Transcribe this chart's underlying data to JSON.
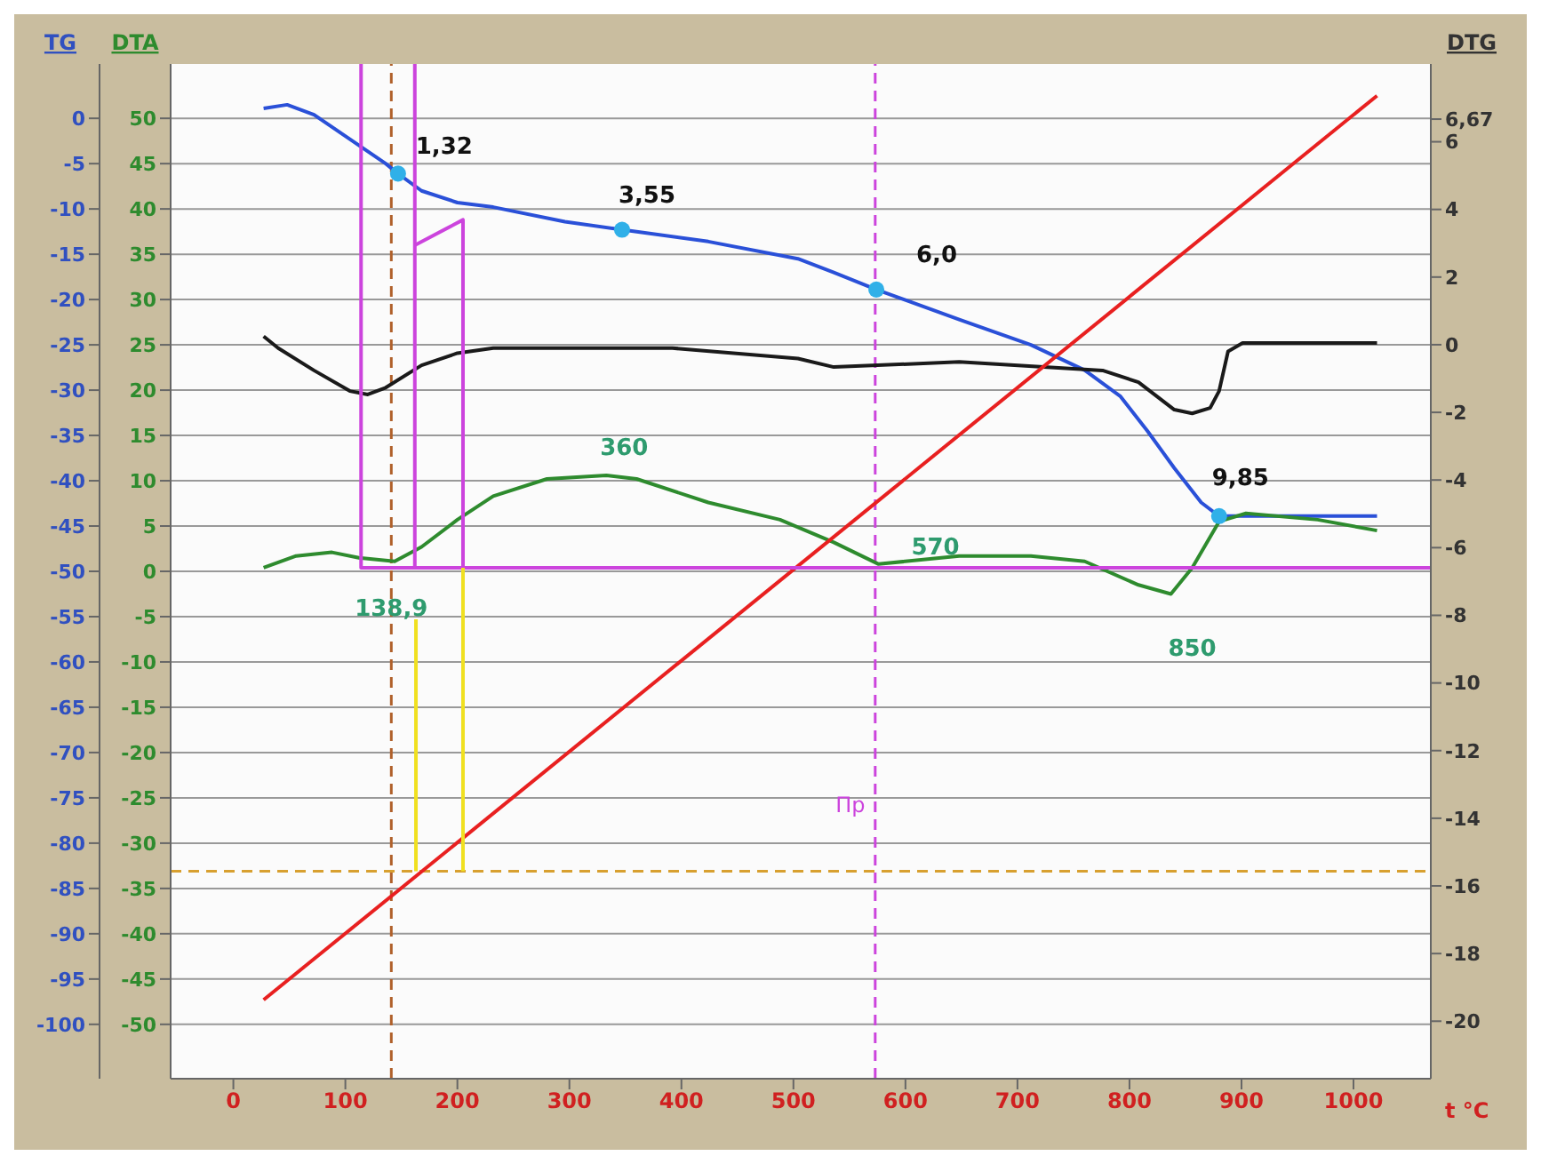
{
  "chart_data": {
    "type": "line",
    "xlabel": "t °C",
    "ylabel": "DTA",
    "y2label": "TG",
    "y3label": "DTG",
    "xlim": [
      -56,
      1069
    ],
    "xticks": [
      0,
      100,
      200,
      300,
      400,
      500,
      600,
      700,
      800,
      900,
      1000
    ],
    "ylim": [
      -56,
      56
    ],
    "yticks": [
      -50,
      -45,
      -40,
      -35,
      -30,
      -25,
      -20,
      -15,
      -10,
      -5,
      0,
      5,
      10,
      15,
      20,
      25,
      30,
      35,
      40,
      45,
      50
    ],
    "y2lim": [
      -106,
      6
    ],
    "y2ticks": [
      -100,
      -95,
      -90,
      -85,
      -80,
      -75,
      -70,
      -65,
      -60,
      -55,
      -50,
      -45,
      -40,
      -35,
      -30,
      -25,
      -20,
      -15,
      -10,
      -5,
      0
    ],
    "y3lim": [
      -21.7,
      8.3
    ],
    "y3ticks": [
      -20,
      -18,
      -16,
      -14,
      -12,
      -10,
      -8,
      -6,
      -4,
      -2,
      0,
      2,
      4,
      6,
      {
        "value": 6.67,
        "label": "6,67"
      }
    ],
    "grid": "y",
    "legend": false,
    "series": [
      {
        "axis": "y2",
        "color": "#2a50d8",
        "x": [
          27,
          48,
          72,
          104,
          136,
          147,
          168,
          200,
          232,
          296,
          347,
          424,
          504,
          536,
          574,
          648,
          712,
          760,
          792,
          816,
          840,
          864,
          880,
          904,
          1021
        ],
        "values": [
          1.1,
          1.5,
          0.4,
          -2.3,
          -5.0,
          -6.1,
          -8.0,
          -9.3,
          -9.8,
          -11.4,
          -12.3,
          -13.6,
          -15.5,
          -17.0,
          -18.9,
          -22.2,
          -25.0,
          -27.8,
          -30.7,
          -34.5,
          -38.6,
          -42.4,
          -43.9,
          -43.9,
          -43.9
        ]
      },
      {
        "type": "scatter",
        "axis": "y2",
        "color": "#30b0e8",
        "marker": "circle",
        "x": [
          147,
          347,
          574,
          880
        ],
        "values": [
          -6.1,
          -12.3,
          -18.9,
          -43.9
        ]
      },
      {
        "axis": "y3",
        "color": "#1a1a1a",
        "x": [
          27,
          40,
          72,
          104,
          120,
          136,
          168,
          200,
          232,
          392,
          504,
          536,
          648,
          776,
          808,
          840,
          856,
          872,
          880,
          888,
          901,
          1021
        ],
        "values": [
          0.25,
          -0.1,
          -0.76,
          -1.37,
          -1.47,
          -1.27,
          -0.61,
          -0.25,
          -0.1,
          -0.1,
          -0.41,
          -0.66,
          -0.51,
          -0.76,
          -1.11,
          -1.92,
          -2.03,
          -1.87,
          -1.37,
          -0.2,
          0.05,
          0.05
        ]
      },
      {
        "color": "#2e8b2e",
        "x": [
          27,
          56,
          88,
          112,
          144,
          168,
          200,
          232,
          280,
          333,
          360,
          424,
          488,
          536,
          576,
          648,
          712,
          760,
          808,
          837,
          856,
          880,
          904,
          968,
          1021
        ],
        "values": [
          0.4,
          1.7,
          2.1,
          1.5,
          1.1,
          2.7,
          5.7,
          8.3,
          10.2,
          10.6,
          10.2,
          7.6,
          5.7,
          3.2,
          0.8,
          1.7,
          1.7,
          1.1,
          -1.5,
          -2.5,
          0.4,
          5.5,
          6.4,
          5.7,
          4.5
        ]
      },
      {
        "color": "#e82020",
        "x": [
          27,
          1021
        ],
        "values": [
          -47.3,
          52.5
        ]
      },
      {
        "color": "#cc44dd",
        "x": [
          114,
          114,
          1069
        ],
        "values": [
          56,
          0.4,
          0.4
        ]
      },
      {
        "color": "#cc44dd",
        "x": [
          162,
          162
        ],
        "values": [
          56,
          0.4
        ]
      },
      {
        "color": "#cc44dd",
        "x": [
          162,
          205,
          205
        ],
        "values": [
          36,
          38.8,
          0.4
        ]
      },
      {
        "color": "#f0e020",
        "x": [
          163,
          163
        ],
        "values": [
          -5.3,
          -33.1
        ]
      },
      {
        "color": "#f0e020",
        "x": [
          205,
          205
        ],
        "values": [
          0.4,
          -33.1
        ]
      }
    ],
    "annotations": [
      {
        "text": "1,32",
        "x": 147,
        "y": 43.9
      },
      {
        "text": "3,55",
        "x": 347,
        "y": 37.7
      },
      {
        "text": "6,0",
        "x": 574,
        "y": 31.1
      },
      {
        "text": "9,85",
        "x": 880,
        "y": 6.1
      },
      {
        "text": "138,9",
        "x": 141,
        "y": 1.1
      },
      {
        "text": "360",
        "x": 333,
        "y": 10.6
      },
      {
        "text": "570",
        "x": 576,
        "y": 0.8
      },
      {
        "text": "850",
        "x": 837,
        "y": -2.5
      }
    ],
    "ref_lines": [
      {
        "axis": "x",
        "value": 141,
        "color": "#b0602a",
        "line_style": "dashed"
      },
      {
        "axis": "x",
        "value": 573,
        "label": "Пр",
        "color": "#cc44dd",
        "line_style": "dashed"
      },
      {
        "axis": "y",
        "value": -33.1,
        "color": "#d8a030",
        "line_style": "dashed"
      }
    ]
  }
}
